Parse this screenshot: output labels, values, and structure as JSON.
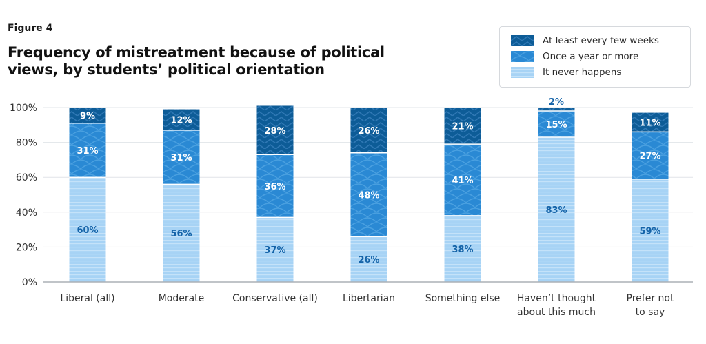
{
  "figure_label": "Figure 4",
  "title": "Frequency of mistreatment because of political views, by students’ political orientation",
  "legend": [
    {
      "label": "At least every few weeks",
      "pattern": "chevron"
    },
    {
      "label": "Once a year or more",
      "pattern": "arcs"
    },
    {
      "label": "It never happens",
      "pattern": "stripes"
    }
  ],
  "colors": {
    "dark": "#0d5c97",
    "mid": "#2a89d4",
    "light": "#a7d3f5",
    "grid": "#e1e4e8",
    "axis_text": "#333333",
    "label_dark": "#1463a8",
    "label_light": "#ffffff"
  },
  "chart_data": {
    "type": "bar",
    "stacked": true,
    "categories": [
      [
        "Liberal (all)"
      ],
      [
        "Moderate"
      ],
      [
        "Conservative (all)"
      ],
      [
        "Libertarian"
      ],
      [
        "Something else"
      ],
      [
        "Haven’t thought",
        "about this much"
      ],
      [
        "Prefer not",
        "to say"
      ]
    ],
    "series": [
      {
        "name": "It never happens",
        "values": [
          60,
          56,
          37,
          26,
          38,
          83,
          59
        ]
      },
      {
        "name": "Once a year or more",
        "values": [
          31,
          31,
          36,
          48,
          41,
          15,
          27
        ]
      },
      {
        "name": "At least every few weeks",
        "values": [
          9,
          12,
          28,
          26,
          21,
          2,
          11
        ]
      }
    ],
    "value_suffix": "%",
    "ylim": [
      0,
      100
    ],
    "yticks": [
      "0%",
      "20%",
      "40%",
      "60%",
      "80%",
      "100%"
    ],
    "grid": true,
    "legend_position": "top-right"
  }
}
